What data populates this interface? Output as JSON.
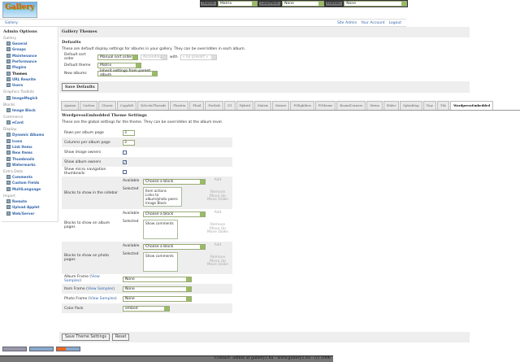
{
  "header": {
    "logo_text": "Gallery",
    "theme_label": "Theme:",
    "theme_value": "Matrix",
    "colorpack_label": "ColorPack:",
    "colorpack_value": "None",
    "frames_label": "Frames:",
    "frames_value": "None"
  },
  "breadcrumb": "Gallery",
  "top_links": [
    "Site Admin",
    "Your Account",
    "Logout"
  ],
  "sidebar": {
    "title": "Admin Options",
    "groups": [
      {
        "name": "Gallery",
        "items": [
          "General",
          "Groups",
          "Maintenance",
          "Performance",
          "Plugins",
          "Themes",
          "URL Rewrite",
          "Users"
        ]
      },
      {
        "name": "Graphics Toolkits",
        "items": [
          "ImageMagick"
        ]
      },
      {
        "name": "Blocks",
        "items": [
          "Image Block"
        ]
      },
      {
        "name": "Commerce",
        "items": [
          "eCard"
        ]
      },
      {
        "name": "Display",
        "items": [
          "Dynamic Albums",
          "Icons",
          "Link Items",
          "New Items",
          "Thumbnails",
          "Watermarks"
        ]
      },
      {
        "name": "Extra Data",
        "items": [
          "Comments",
          "Custom Fields",
          "MultiLanguage"
        ]
      },
      {
        "name": "Import",
        "items": [
          "Remote",
          "Upload Applet",
          "Web/Server"
        ]
      }
    ],
    "current": "Themes"
  },
  "main": {
    "title": "Gallery Themes",
    "defaults_title": "Defaults",
    "defaults_desc": "These are default display settings for albums in your gallery. They can be overridden in each album.",
    "sort_label": "Default sort order",
    "sort_value": "Manual sort order",
    "sort_dir": "Ascending",
    "with_label": "with",
    "presort": "« no presort »",
    "theme_label": "Default theme",
    "theme_value": "Matrix",
    "new_albums_label": "New albums",
    "new_albums_value": "Inherit settings from parent album",
    "save_defaults": "Save Defaults"
  },
  "tabs": [
    "Ajaxian",
    "Carbon",
    "Classic",
    "Copyleft",
    "EclecticThreads",
    "Floatrix",
    "Fluid",
    "PorSale",
    "G1",
    "Hybrid",
    "Matrix",
    "Nature",
    "PGlightbox",
    "PGtheme",
    "RoundCorners",
    "Siriux",
    "Slider",
    "SplashIng",
    "Tiny",
    "Tile",
    "WordpressEmbedded"
  ],
  "active_tab": "WordpressEmbedded",
  "theme_settings": {
    "title": "WordpressEmbedded Theme Settings",
    "desc": "These are the global settings for the theme. They can be overridden at the album level.",
    "rows_label": "Rows per album page",
    "rows_value": "3",
    "cols_label": "Columns per album page",
    "cols_value": "3",
    "image_owners_label": "Show image owners",
    "image_owners": false,
    "album_owners_label": "Show album owners",
    "album_owners": true,
    "micro_nav_label": "Show micro navigation thumbnails",
    "micro_nav": false,
    "available_label": "Available",
    "selected_label": "Selected",
    "choose": "Choose a block",
    "add": "Add",
    "remove": "Remove",
    "move_up": "Move Up",
    "move_down": "Move Down",
    "sidebar_label": "Blocks to show in the sidebar",
    "sidebar_blocks": [
      "Item actions",
      "Links to album/photo peers",
      "Image Block"
    ],
    "album_label": "Blocks to show on album pages",
    "album_blocks": [
      "Show comments"
    ],
    "photo_label": "Blocks to show on photo pages",
    "photo_blocks": [
      "Show comments"
    ],
    "album_frame_label": "Album Frame",
    "item_frame_label": "Item Frame",
    "photo_frame_label": "Photo Frame",
    "view_samples": "View Samples",
    "frame_value": "None",
    "color_pack_label": "Color Pack",
    "color_pack_value": "embed"
  },
  "buttons": {
    "save": "Save Theme Settings",
    "reset": "Reset"
  },
  "footer": "Contact: admin at gallery2.hu - www.gallery2.hu - (c) 2006"
}
